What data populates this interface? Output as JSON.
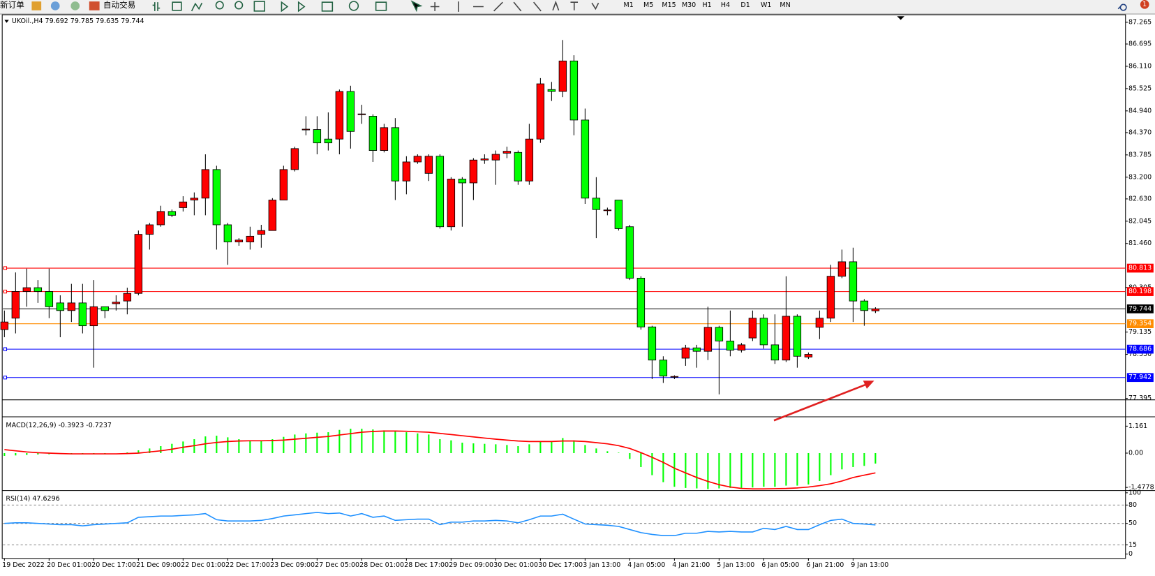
{
  "toolbar": {
    "new_order": "新订单",
    "auto_trading": "自动交易",
    "timeframes": [
      "M1",
      "M5",
      "M15",
      "M30",
      "H1",
      "H4",
      "D1",
      "W1",
      "MN"
    ],
    "badge": "1"
  },
  "chart_data": [
    {
      "type": "candlestick",
      "title": "UKOil.,H4 79.692 79.785 79.635 79.744",
      "up_color": "#ff0000",
      "down_color": "#00ff00",
      "categories": [
        "19 Dec 2022",
        null,
        null,
        null,
        "20 Dec 01:00",
        null,
        null,
        null,
        "20 Dec 17:00",
        null,
        null,
        null,
        "21 Dec 09:00",
        null,
        null,
        null,
        "22 Dec 01:00",
        null,
        null,
        null,
        "22 Dec 17:00",
        null,
        null,
        null,
        "23 Dec 09:00",
        null,
        null,
        null,
        "27 Dec 05:00",
        null,
        null,
        null,
        "28 Dec 01:00",
        null,
        null,
        null,
        "28 Dec 17:00",
        null,
        null,
        null,
        "29 Dec 09:00",
        null,
        null,
        null,
        "30 Dec 01:00",
        null,
        null,
        null,
        "30 Dec 17:00",
        null,
        null,
        null,
        "3 Jan 13:00",
        null,
        null,
        null,
        "4 Jan 05:00",
        null,
        null,
        null,
        "4 Jan 21:00",
        null,
        null,
        null,
        "5 Jan 13:00",
        null,
        null,
        null,
        "6 Jan 05:00",
        null,
        null,
        null,
        "6 Jan 21:00",
        null,
        null,
        null,
        "9 Jan 13:00",
        null,
        null
      ],
      "open": [
        79.2,
        79.5,
        80.2,
        80.3,
        80.2,
        79.9,
        79.7,
        79.9,
        79.3,
        79.8,
        79.88,
        79.95,
        80.15,
        81.7,
        81.95,
        82.3,
        82.4,
        82.6,
        82.65,
        83.4,
        81.95,
        81.5,
        81.5,
        81.7,
        81.8,
        82.6,
        83.4,
        84.44,
        84.45,
        84.2,
        84.2,
        85.45,
        84.84,
        84.8,
        83.9,
        84.5,
        83.1,
        83.6,
        83.3,
        83.75,
        81.9,
        83.15,
        83.05,
        83.65,
        83.65,
        83.83,
        83.85,
        83.1,
        84.2,
        85.5,
        85.45,
        86.25,
        84.7,
        82.65,
        82.32,
        82.6,
        81.9,
        80.55,
        79.27,
        78.4,
        77.95,
        78.45,
        78.72,
        78.63,
        79.26,
        78.9,
        78.66,
        78.98,
        79.5,
        78.8,
        78.4,
        79.55,
        78.48,
        79.26,
        79.5,
        80.6,
        80.98,
        79.95,
        79.692
      ],
      "high": [
        79.7,
        80.7,
        80.8,
        80.5,
        80.8,
        80.1,
        80.4,
        80.4,
        80.5,
        79.8,
        80.1,
        80.3,
        81.8,
        82.0,
        82.45,
        82.35,
        82.7,
        82.8,
        83.8,
        83.5,
        82.0,
        81.6,
        81.9,
        81.95,
        82.65,
        83.5,
        84.0,
        84.8,
        84.8,
        84.9,
        85.5,
        85.6,
        85.1,
        84.85,
        84.6,
        84.75,
        83.75,
        83.8,
        83.8,
        83.8,
        83.2,
        83.2,
        83.7,
        83.8,
        83.9,
        84.0,
        83.9,
        84.6,
        85.8,
        85.7,
        86.8,
        86.4,
        85.0,
        83.2,
        82.4,
        82.6,
        81.95,
        80.6,
        79.3,
        78.5,
        78.0,
        78.8,
        78.8,
        79.8,
        79.3,
        79.7,
        78.85,
        79.7,
        79.6,
        79.6,
        80.6,
        79.6,
        78.6,
        79.7,
        80.9,
        81.3,
        81.35,
        80.0,
        79.785
      ],
      "low": [
        79.0,
        79.1,
        79.8,
        79.9,
        79.5,
        79.0,
        79.4,
        79.1,
        78.2,
        79.5,
        79.7,
        79.6,
        80.1,
        81.3,
        81.9,
        82.15,
        82.3,
        82.2,
        82.2,
        81.3,
        80.9,
        81.4,
        81.3,
        81.35,
        81.8,
        82.6,
        83.35,
        84.3,
        83.8,
        83.9,
        83.8,
        83.95,
        84.6,
        83.6,
        83.85,
        82.6,
        82.75,
        83.55,
        83.1,
        81.85,
        81.8,
        81.9,
        82.6,
        83.55,
        83.0,
        83.7,
        83.0,
        83.0,
        84.1,
        85.2,
        85.3,
        84.3,
        82.5,
        81.6,
        82.2,
        81.8,
        80.5,
        79.2,
        77.9,
        77.8,
        77.9,
        78.25,
        78.2,
        78.4,
        77.5,
        78.5,
        78.6,
        78.9,
        78.7,
        78.3,
        78.35,
        78.2,
        78.43,
        78.95,
        79.4,
        80.55,
        79.4,
        79.3,
        79.635
      ],
      "close": [
        79.4,
        80.2,
        80.3,
        80.2,
        79.8,
        79.7,
        79.9,
        79.3,
        79.8,
        79.7,
        79.92,
        80.15,
        81.7,
        81.95,
        82.3,
        82.2,
        82.55,
        82.65,
        83.4,
        81.95,
        81.5,
        81.55,
        81.65,
        81.8,
        82.6,
        83.4,
        83.95,
        84.46,
        84.1,
        84.1,
        85.45,
        84.4,
        84.86,
        83.9,
        84.5,
        83.1,
        83.6,
        83.75,
        83.75,
        81.9,
        83.15,
        83.05,
        83.65,
        83.68,
        83.8,
        83.88,
        83.1,
        84.2,
        85.65,
        85.45,
        86.25,
        84.7,
        82.65,
        82.35,
        82.34,
        81.85,
        80.55,
        79.27,
        78.4,
        77.98,
        77.97,
        78.72,
        78.63,
        79.26,
        78.9,
        78.66,
        78.8,
        79.5,
        78.8,
        78.4,
        79.55,
        78.5,
        78.55,
        79.5,
        80.6,
        80.98,
        79.95,
        79.7,
        79.744
      ],
      "ylim": [
        77.395,
        87.424
      ],
      "yticks": [
        87.265,
        86.695,
        {
          "value": 86.11,
          "label": "86.110"
        },
        85.525,
        {
          "value": 84.94,
          "label": "84.940"
        },
        {
          "value": 84.37,
          "label": "84.370"
        },
        83.785,
        {
          "value": 83.2,
          "label": "83.200"
        },
        {
          "value": 82.63,
          "label": "82.630"
        },
        82.045,
        {
          "value": 81.46,
          "label": "81.460"
        },
        80.305,
        79.135,
        {
          "value": 78.55,
          "label": "78.550"
        },
        77.395
      ],
      "lines": [
        {
          "value": 80.813,
          "color": "#ff0000"
        },
        {
          "value": 80.198,
          "color": "#ff0000"
        },
        {
          "value": 79.744,
          "color": "#000000"
        },
        {
          "value": 79.354,
          "color": "#ff8c00"
        },
        {
          "value": 78.686,
          "color": "#0000ff"
        },
        {
          "value": 77.942,
          "color": "#0000ff"
        }
      ]
    },
    {
      "type": "bar",
      "title": "MACD(12,26,9) -0.3923 -0.7237",
      "series": [
        {
          "type": "bar",
          "color": "#00ff00",
          "values": [
            -0.12,
            -0.1,
            -0.08,
            -0.06,
            -0.05,
            -0.04,
            -0.03,
            -0.03,
            -0.02,
            -0.02,
            0.0,
            0.03,
            0.12,
            0.2,
            0.3,
            0.4,
            0.5,
            0.6,
            0.72,
            0.75,
            0.68,
            0.6,
            0.55,
            0.52,
            0.6,
            0.7,
            0.8,
            0.85,
            0.88,
            0.9,
            1.0,
            1.05,
            1.05,
            1.02,
            0.98,
            0.95,
            0.9,
            0.85,
            0.8,
            0.6,
            0.55,
            0.45,
            0.42,
            0.4,
            0.38,
            0.35,
            0.3,
            0.38,
            0.5,
            0.52,
            0.65,
            0.55,
            0.35,
            0.2,
            0.08,
            0.02,
            -0.25,
            -0.6,
            -0.95,
            -1.25,
            -1.45,
            -1.5,
            -1.52,
            -1.55,
            -1.52,
            -1.5,
            -1.5,
            -1.48,
            -1.45,
            -1.45,
            -1.4,
            -1.4,
            -1.35,
            -1.2,
            -0.95,
            -0.7,
            -0.6,
            -0.55,
            -0.45
          ]
        },
        {
          "type": "line",
          "color": "#ff0000",
          "values": [
            0.15,
            0.1,
            0.05,
            0.02,
            0.0,
            -0.02,
            -0.03,
            -0.03,
            -0.03,
            -0.03,
            -0.03,
            -0.02,
            0.0,
            0.05,
            0.1,
            0.17,
            0.25,
            0.32,
            0.4,
            0.46,
            0.5,
            0.52,
            0.53,
            0.53,
            0.54,
            0.56,
            0.6,
            0.64,
            0.68,
            0.72,
            0.78,
            0.84,
            0.9,
            0.93,
            0.95,
            0.95,
            0.94,
            0.92,
            0.9,
            0.85,
            0.8,
            0.75,
            0.7,
            0.65,
            0.6,
            0.56,
            0.52,
            0.5,
            0.5,
            0.5,
            0.52,
            0.52,
            0.5,
            0.45,
            0.4,
            0.32,
            0.2,
            0.02,
            -0.18,
            -0.4,
            -0.65,
            -0.85,
            -1.05,
            -1.22,
            -1.36,
            -1.46,
            -1.52,
            -1.54,
            -1.54,
            -1.53,
            -1.52,
            -1.5,
            -1.46,
            -1.4,
            -1.32,
            -1.2,
            -1.05,
            -0.95,
            -0.85
          ]
        }
      ],
      "ylim": [
        -1.55,
        1.5
      ],
      "yticks": [
        1.161,
        {
          "value": 0,
          "label": "0.00"
        },
        -1.4778
      ]
    },
    {
      "type": "line",
      "title": "RSI(14) 47.6296",
      "series": [
        {
          "color": "#1e90ff",
          "values": [
            50,
            51,
            51,
            50,
            49,
            48,
            48,
            46,
            48,
            49,
            50,
            51,
            60,
            61,
            62,
            62,
            63,
            64,
            66,
            56,
            54,
            54,
            54,
            55,
            58,
            62,
            64,
            66,
            68,
            66,
            67,
            62,
            66,
            60,
            62,
            55,
            56,
            57,
            57,
            48,
            52,
            52,
            54,
            54,
            55,
            54,
            51,
            56,
            62,
            62,
            65,
            57,
            49,
            48,
            47,
            45,
            40,
            35,
            32,
            30,
            30,
            34,
            34,
            37,
            36,
            37,
            36,
            36,
            42,
            40,
            45,
            40,
            40,
            48,
            55,
            57,
            50,
            49,
            47.6
          ]
        }
      ],
      "ylim": [
        0,
        100
      ],
      "yticks": [
        100,
        80,
        50,
        15,
        0
      ],
      "grid": true
    }
  ]
}
